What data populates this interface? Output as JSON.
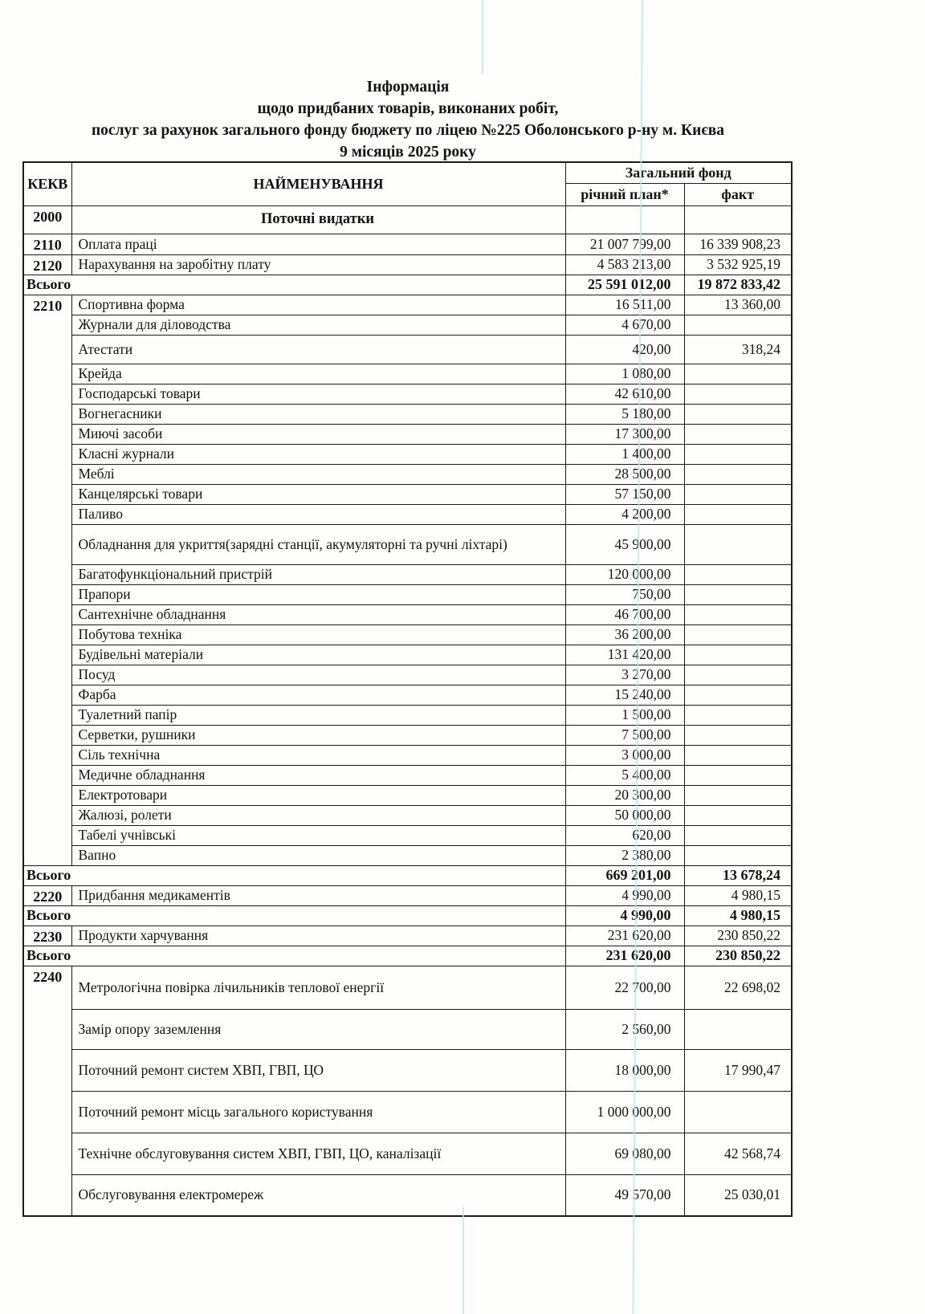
{
  "title": {
    "line1": "Інформація",
    "line2": "щодо придбаних товарів, виконаних робіт,",
    "line3": "послуг за рахунок загального фонду бюджету по ліцею №225 Оболонського р-ну м. Києва",
    "line4": "9  місяців  2025 року"
  },
  "table": {
    "headers": {
      "kekv": "КЕКВ",
      "name": "НАЙМЕНУВАННЯ",
      "fund": "Загальний фонд",
      "plan": "річний план*",
      "fact": "факт"
    },
    "rows": [
      {
        "type": "section",
        "kekv": "2000",
        "name": "Поточні видатки",
        "plan": "",
        "fact": ""
      },
      {
        "type": "item",
        "kekv": "2110",
        "name": "Оплата праці",
        "plan": "21 007 799,00",
        "fact": "16 339 908,23"
      },
      {
        "type": "item",
        "kekv": "2120",
        "name": "Нарахування на заробітну плату",
        "plan": "4 583 213,00",
        "fact": "3 532 925,19"
      },
      {
        "type": "total",
        "name": "Всього",
        "plan": "25 591 012,00",
        "fact": "19 872 833,42"
      },
      {
        "type": "item",
        "kekv": "2210",
        "span": 27,
        "name": "Спортивна форма",
        "plan": "16 511,00",
        "fact": "13 360,00"
      },
      {
        "type": "item",
        "name": "Журнали для діловодства",
        "plan": "4 670,00",
        "fact": ""
      },
      {
        "type": "item",
        "name": "Атестати",
        "plan": "420,00",
        "fact": "318,24"
      },
      {
        "type": "item",
        "name": "Крейда",
        "plan": "1 080,00",
        "fact": ""
      },
      {
        "type": "item",
        "name": "Господарські товари",
        "plan": "42 610,00",
        "fact": ""
      },
      {
        "type": "item",
        "name": "Вогнегасники",
        "plan": "5 180,00",
        "fact": ""
      },
      {
        "type": "item",
        "name": "Миючі засоби",
        "plan": "17 300,00",
        "fact": ""
      },
      {
        "type": "item",
        "name": "Класні журнали",
        "plan": "1 400,00",
        "fact": ""
      },
      {
        "type": "item",
        "name": "Меблі",
        "plan": "28 500,00",
        "fact": ""
      },
      {
        "type": "item",
        "name": "Канцелярські товари",
        "plan": "57 150,00",
        "fact": ""
      },
      {
        "type": "item",
        "name": "Паливо",
        "plan": "4 200,00",
        "fact": ""
      },
      {
        "type": "item",
        "name": "Обладнання для укриття(зарядні станції, акумуляторні та ручні ліхтарі)",
        "plan": "45 900,00",
        "fact": ""
      },
      {
        "type": "item",
        "name": "Багатофункціональний пристрій",
        "plan": "120 000,00",
        "fact": ""
      },
      {
        "type": "item",
        "name": "Прапори",
        "plan": "750,00",
        "fact": ""
      },
      {
        "type": "item",
        "name": "Сантехнічне обладнання",
        "plan": "46 700,00",
        "fact": ""
      },
      {
        "type": "item",
        "name": "Побутова техніка",
        "plan": "36 200,00",
        "fact": ""
      },
      {
        "type": "item",
        "name": "Будівельні матеріали",
        "plan": "131 420,00",
        "fact": ""
      },
      {
        "type": "item",
        "name": "Посуд",
        "plan": "3 270,00",
        "fact": ""
      },
      {
        "type": "item",
        "name": "Фарба",
        "plan": "15 240,00",
        "fact": ""
      },
      {
        "type": "item",
        "name": "Туалетний папір",
        "plan": "1 500,00",
        "fact": ""
      },
      {
        "type": "item",
        "name": "Серветки, рушники",
        "plan": "7 500,00",
        "fact": ""
      },
      {
        "type": "item",
        "name": "Сіль технічна",
        "plan": "3 000,00",
        "fact": ""
      },
      {
        "type": "item",
        "name": "Медичне обладнання",
        "plan": "5 400,00",
        "fact": ""
      },
      {
        "type": "item",
        "name": "Електротовари",
        "plan": "20 300,00",
        "fact": ""
      },
      {
        "type": "item",
        "name": "Жалюзі, ролети",
        "plan": "50 000,00",
        "fact": ""
      },
      {
        "type": "item",
        "name": "Табелі учнівські",
        "plan": "620,00",
        "fact": ""
      },
      {
        "type": "item",
        "name": "Вапно",
        "plan": "2 380,00",
        "fact": ""
      },
      {
        "type": "total",
        "name": "Всього",
        "plan": "669 201,00",
        "fact": "13 678,24"
      },
      {
        "type": "item",
        "kekv": "2220",
        "name": "Придбання медикаментів",
        "plan": "4 990,00",
        "fact": "4 980,15"
      },
      {
        "type": "total",
        "name": "Всього",
        "plan": "4 990,00",
        "fact": "4 980,15"
      },
      {
        "type": "item",
        "kekv": "2230",
        "name": "Продукти харчування",
        "plan": "231 620,00",
        "fact": "230 850,22"
      },
      {
        "type": "total",
        "name": "Всього",
        "plan": "231 620,00",
        "fact": "230 850,22"
      },
      {
        "type": "item",
        "kekv": "2240",
        "span": 6,
        "name": "Метрологічна повірка лічильників теплової енергії",
        "plan": "22 700,00",
        "fact": "22 698,02"
      },
      {
        "type": "item",
        "name": "Замір опору заземлення",
        "plan": "2 560,00",
        "fact": ""
      },
      {
        "type": "item",
        "name": "Поточний ремонт систем ХВП, ГВП, ЦО",
        "plan": "18 000,00",
        "fact": "17 990,47"
      },
      {
        "type": "item",
        "name": "Поточний ремонт місць загального користування",
        "plan": "1 000 000,00",
        "fact": ""
      },
      {
        "type": "item",
        "name": "Технічне обслуговування систем ХВП, ГВП, ЦО, каналізації",
        "plan": "69 080,00",
        "fact": "42 568,74"
      },
      {
        "type": "item",
        "name": "Обслуговування електромереж",
        "plan": "49 570,00",
        "fact": "25 030,01"
      }
    ]
  }
}
